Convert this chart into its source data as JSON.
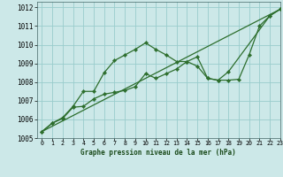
{
  "title": "Graphe pression niveau de la mer (hPa)",
  "background_color": "#cce8e8",
  "grid_color": "#99cccc",
  "line_color": "#2d6e2d",
  "xlim": [
    -0.5,
    23
  ],
  "ylim": [
    1005,
    1012.3
  ],
  "xticks": [
    0,
    1,
    2,
    3,
    4,
    5,
    6,
    7,
    8,
    9,
    10,
    11,
    12,
    13,
    14,
    15,
    16,
    17,
    18,
    19,
    20,
    21,
    22,
    23
  ],
  "yticks": [
    1005,
    1006,
    1007,
    1008,
    1009,
    1010,
    1011,
    1012
  ],
  "series1_x": [
    0,
    1,
    2,
    3,
    4,
    5,
    6,
    7,
    8,
    9,
    10,
    11,
    12,
    13,
    14,
    15,
    16,
    17,
    18,
    19,
    20,
    21,
    22,
    23
  ],
  "series1_y": [
    1005.35,
    1005.8,
    1006.1,
    1006.7,
    1007.5,
    1007.5,
    1008.5,
    1009.15,
    1009.45,
    1009.75,
    1010.1,
    1009.75,
    1009.45,
    1009.1,
    1009.1,
    1008.85,
    1008.2,
    1008.1,
    1008.1,
    1008.15,
    1009.45,
    1011.0,
    1011.55,
    1011.9
  ],
  "series2_x": [
    0,
    1,
    2,
    3,
    4,
    5,
    6,
    7,
    8,
    9,
    10,
    11,
    12,
    13,
    14,
    15,
    16,
    17,
    18,
    22,
    23
  ],
  "series2_y": [
    1005.35,
    1005.8,
    1006.05,
    1006.65,
    1006.7,
    1007.1,
    1007.35,
    1007.45,
    1007.55,
    1007.75,
    1008.45,
    1008.2,
    1008.45,
    1008.7,
    1009.1,
    1009.35,
    1008.2,
    1008.1,
    1008.55,
    1011.55,
    1011.9
  ],
  "series3_x": [
    0,
    23
  ],
  "series3_y": [
    1005.35,
    1011.9
  ]
}
